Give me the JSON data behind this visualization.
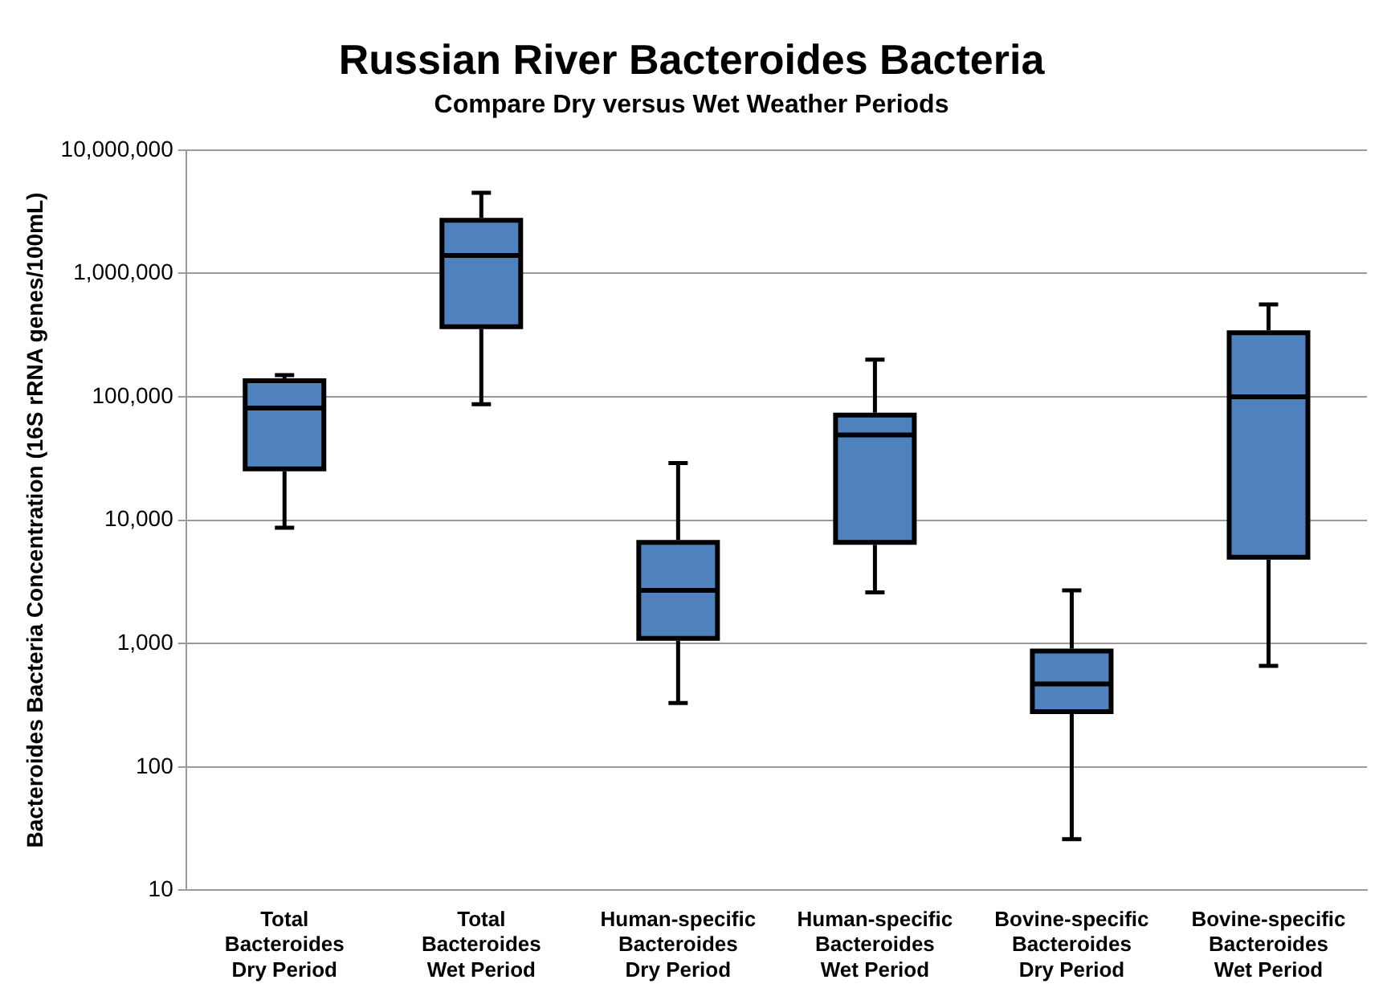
{
  "chart_data": {
    "type": "box",
    "title": "Russian River Bacteroides Bacteria",
    "subtitle": "Compare Dry versus Wet Weather Periods",
    "ylabel": "Bacteroides Bacteria Concentration (16S rRNA genes/100mL)",
    "categories": [
      "Total Bacteroides Dry Period",
      "Total Bacteroides Wet Period",
      "Human-specific Bacteroides Dry Period",
      "Human-specific Bacteroides Wet Period",
      "Bovine-specific Bacteroides Dry Period",
      "Bovine-specific Bacteroides Wet Period"
    ],
    "series": [
      {
        "color": "#4f81bd",
        "boxes": [
          {
            "low": 8700,
            "q1": 26000,
            "median": 81000,
            "q3": 135000,
            "high": 150000
          },
          {
            "low": 87000,
            "q1": 370000,
            "median": 1400000,
            "q3": 2700000,
            "high": 4500000
          },
          {
            "low": 330,
            "q1": 1100,
            "median": 2700,
            "q3": 6600,
            "high": 29000
          },
          {
            "low": 2600,
            "q1": 6600,
            "median": 49000,
            "q3": 71000,
            "high": 200000
          },
          {
            "low": 26,
            "q1": 280,
            "median": 470,
            "q3": 870,
            "high": 2700
          },
          {
            "low": 660,
            "q1": 5000,
            "median": 100000,
            "q3": 330000,
            "high": 560000
          }
        ]
      }
    ],
    "log": "y",
    "ylim": [
      10,
      10000000
    ],
    "yticks": [
      {
        "value": 10,
        "label": "10"
      },
      {
        "value": 100,
        "label": "100"
      },
      {
        "value": 1000,
        "label": "1,000"
      },
      {
        "value": 10000,
        "label": "10,000"
      },
      {
        "value": 100000,
        "label": "100,000"
      },
      {
        "value": 1000000,
        "label": "1,000,000"
      },
      {
        "value": 10000000,
        "label": "10,000,000"
      }
    ],
    "grid": "y",
    "legend": false
  }
}
